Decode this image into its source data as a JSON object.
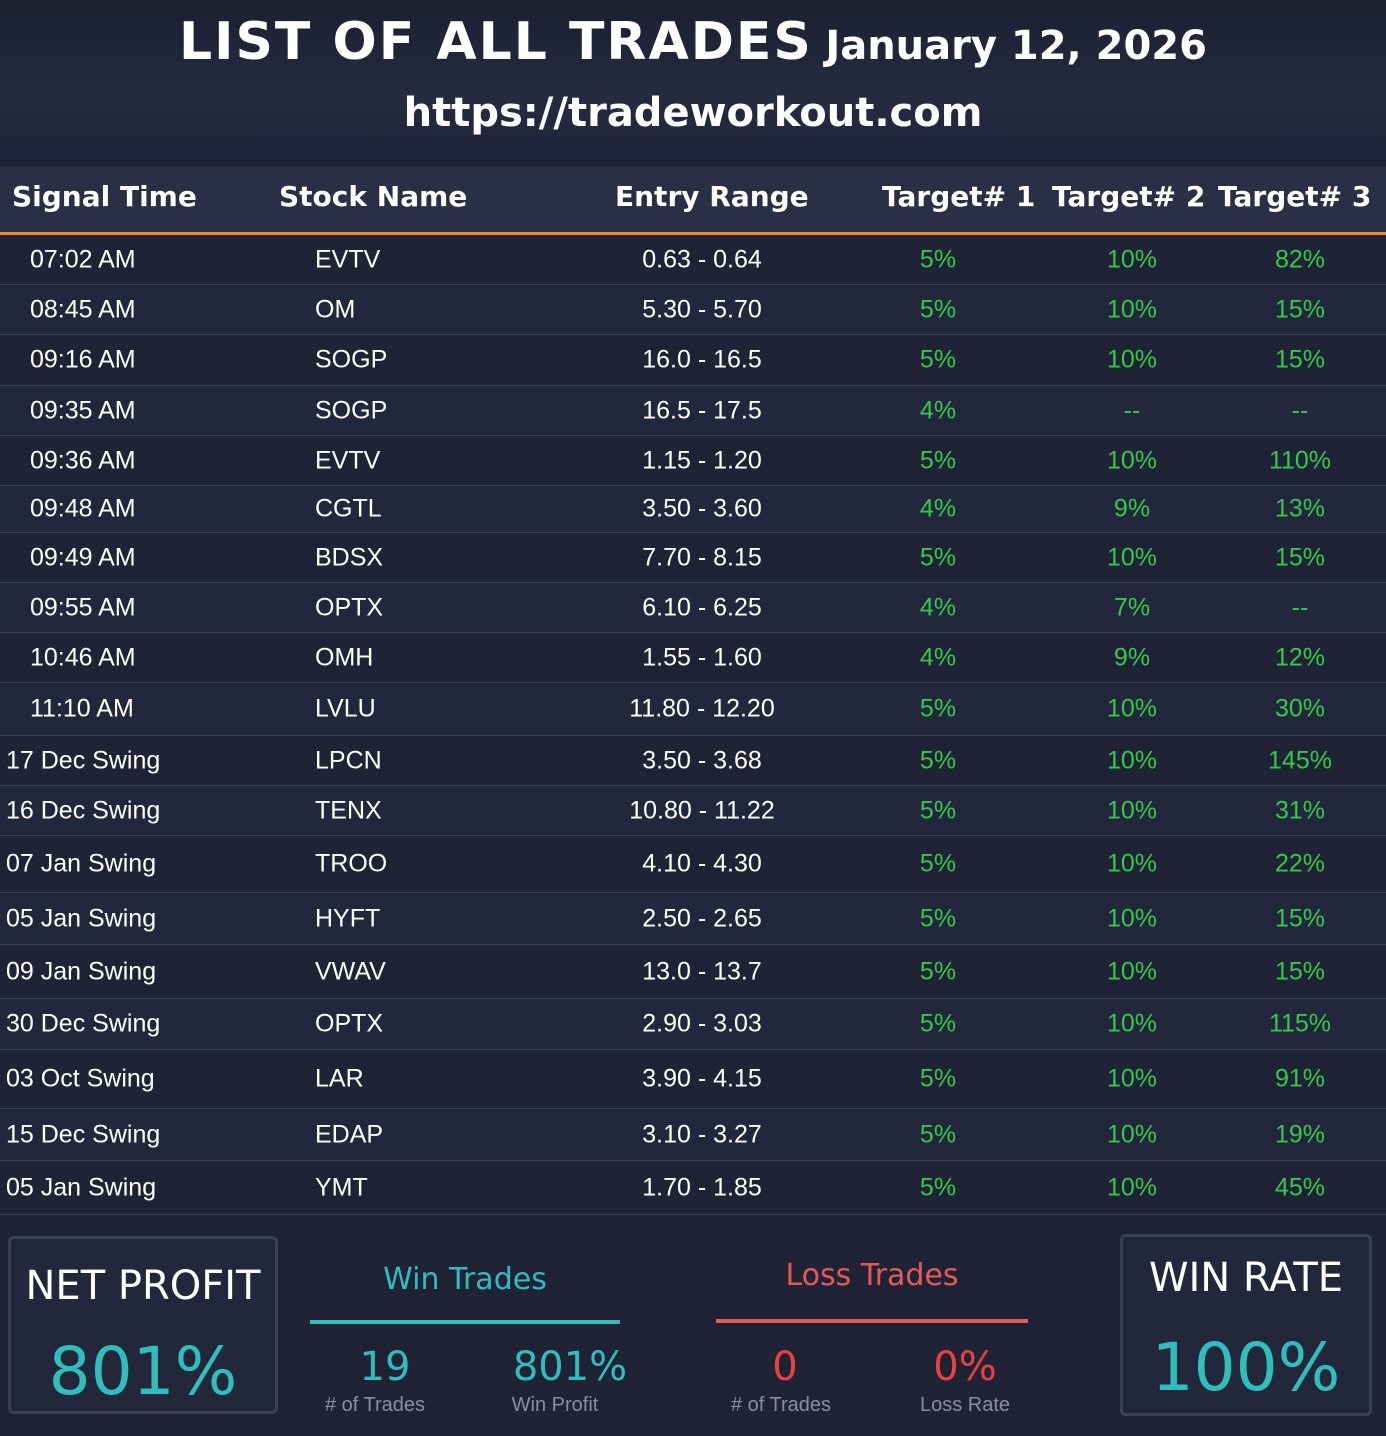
{
  "header": {
    "title": "LIST OF ALL TRADES",
    "date": "January 12, 2026",
    "url": "https://tradeworkout.com"
  },
  "columns": [
    "Signal Time",
    "Stock Name",
    "Entry Range",
    "Target# 1",
    "Target# 2",
    "Target# 3"
  ],
  "trades": [
    {
      "time": "07:02 AM",
      "name": "EVTV",
      "entry": "0.63 - 0.64",
      "t1": "5%",
      "t2": "10%",
      "t3": "82%"
    },
    {
      "time": "08:45 AM",
      "name": "OM",
      "entry": "5.30 - 5.70",
      "t1": "5%",
      "t2": "10%",
      "t3": "15%"
    },
    {
      "time": "09:16 AM",
      "name": "SOGP",
      "entry": "16.0 - 16.5",
      "t1": "5%",
      "t2": "10%",
      "t3": "15%"
    },
    {
      "time": "09:35 AM",
      "name": "SOGP",
      "entry": "16.5 - 17.5",
      "t1": "4%",
      "t2": "--",
      "t3": "--"
    },
    {
      "time": "09:36 AM",
      "name": "EVTV",
      "entry": "1.15 - 1.20",
      "t1": "5%",
      "t2": "10%",
      "t3": "110%"
    },
    {
      "time": "09:48 AM",
      "name": "CGTL",
      "entry": "3.50 - 3.60",
      "t1": "4%",
      "t2": "9%",
      "t3": "13%"
    },
    {
      "time": "09:49 AM",
      "name": "BDSX",
      "entry": "7.70 - 8.15",
      "t1": "5%",
      "t2": "10%",
      "t3": "15%"
    },
    {
      "time": "09:55 AM",
      "name": "OPTX",
      "entry": "6.10 - 6.25",
      "t1": "4%",
      "t2": "7%",
      "t3": "--"
    },
    {
      "time": "10:46 AM",
      "name": "OMH",
      "entry": "1.55 - 1.60",
      "t1": "4%",
      "t2": "9%",
      "t3": "12%"
    },
    {
      "time": "11:10 AM",
      "name": "LVLU",
      "entry": "11.80 - 12.20",
      "t1": "5%",
      "t2": "10%",
      "t3": "30%"
    },
    {
      "time": "17 Dec Swing",
      "name": "LPCN",
      "entry": "3.50 - 3.68",
      "t1": "5%",
      "t2": "10%",
      "t3": "145%"
    },
    {
      "time": "16 Dec Swing",
      "name": "TENX",
      "entry": "10.80 - 11.22",
      "t1": "5%",
      "t2": "10%",
      "t3": "31%"
    },
    {
      "time": "07 Jan Swing",
      "name": "TROO",
      "entry": "4.10 - 4.30",
      "t1": "5%",
      "t2": "10%",
      "t3": "22%"
    },
    {
      "time": "05 Jan Swing",
      "name": "HYFT",
      "entry": "2.50 - 2.65",
      "t1": "5%",
      "t2": "10%",
      "t3": "15%"
    },
    {
      "time": "09 Jan Swing",
      "name": "VWAV",
      "entry": "13.0 - 13.7",
      "t1": "5%",
      "t2": "10%",
      "t3": "15%"
    },
    {
      "time": "30 Dec Swing",
      "name": "OPTX",
      "entry": "2.90 - 3.03",
      "t1": "5%",
      "t2": "10%",
      "t3": "115%"
    },
    {
      "time": "03 Oct Swing",
      "name": "LAR",
      "entry": "3.90 - 4.15",
      "t1": "5%",
      "t2": "10%",
      "t3": "91%"
    },
    {
      "time": "15 Dec Swing",
      "name": "EDAP",
      "entry": "3.10 - 3.27",
      "t1": "5%",
      "t2": "10%",
      "t3": "19%"
    },
    {
      "time": "05 Jan Swing",
      "name": "YMT",
      "entry": "1.70 - 1.85",
      "t1": "5%",
      "t2": "10%",
      "t3": "45%"
    }
  ],
  "summary": {
    "net_profit_label": "NET PROFIT",
    "net_profit_value": "801%",
    "win_trades_label": "Win Trades",
    "win_count": "19",
    "win_count_caption": "# of Trades",
    "win_profit": "801%",
    "win_profit_caption": "Win Profit",
    "loss_trades_label": "Loss Trades",
    "loss_count": "0",
    "loss_count_caption": "# of Trades",
    "loss_rate": "0%",
    "loss_rate_caption": "Loss Rate",
    "win_rate_label": "WIN RATE",
    "win_rate_value": "100%"
  },
  "colors": {
    "accent_orange": "#f08a2a",
    "positive_green": "#34c94a",
    "teal": "#2fbdbd",
    "loss_red": "#e8413f",
    "loss_label": "#e35a5a"
  }
}
